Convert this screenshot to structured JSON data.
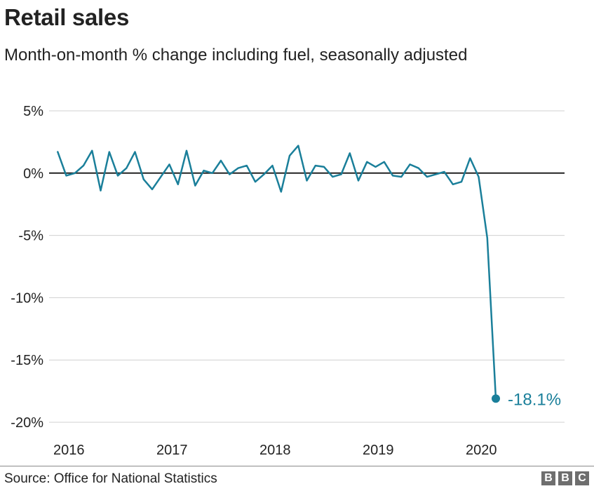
{
  "header": {
    "title": "Retail sales",
    "subtitle": "Month-on-month % change including fuel, seasonally adjusted"
  },
  "footer": {
    "source": "Source: Office for National Statistics",
    "logo_text": "BBC"
  },
  "colors": {
    "line": "#1a7f9a",
    "grid": "#d0d0d0",
    "zero_line": "#222222",
    "text": "#222222"
  },
  "chart_data": {
    "type": "line",
    "title": "Retail sales",
    "subtitle": "Month-on-month % change including fuel, seasonally adjusted",
    "ylim": [
      -20,
      5
    ],
    "yticks": [
      5,
      0,
      -5,
      -10,
      -15,
      -20
    ],
    "ytick_labels": [
      "5%",
      "0%",
      "-5%",
      "-10%",
      "-15%",
      "-20%"
    ],
    "xlim": [
      "2015-12",
      "2020-12"
    ],
    "xticks": [
      "2016-01",
      "2017-01",
      "2018-01",
      "2019-01",
      "2020-01"
    ],
    "xtick_labels": [
      "2016",
      "2017",
      "2018",
      "2019",
      "2020"
    ],
    "grid": true,
    "series": [
      {
        "x": [
          "2016-01",
          "2016-02",
          "2016-03",
          "2016-04",
          "2016-05",
          "2016-06",
          "2016-07",
          "2016-08",
          "2016-09",
          "2016-10",
          "2016-11",
          "2016-12",
          "2017-01",
          "2017-02",
          "2017-03",
          "2017-04",
          "2017-05",
          "2017-06",
          "2017-07",
          "2017-08",
          "2017-09",
          "2017-10",
          "2017-11",
          "2017-12",
          "2018-01",
          "2018-02",
          "2018-03",
          "2018-04",
          "2018-05",
          "2018-06",
          "2018-07",
          "2018-08",
          "2018-09",
          "2018-10",
          "2018-11",
          "2018-12",
          "2019-01",
          "2019-02",
          "2019-03",
          "2019-04",
          "2019-05",
          "2019-06",
          "2019-07",
          "2019-08",
          "2019-09",
          "2019-10",
          "2019-11",
          "2019-12",
          "2020-01",
          "2020-02",
          "2020-03",
          "2020-04"
        ],
        "values": [
          1.7,
          -0.2,
          0.0,
          0.6,
          1.8,
          -1.4,
          1.7,
          -0.2,
          0.4,
          1.7,
          -0.5,
          -1.3,
          -0.3,
          0.7,
          -0.9,
          1.8,
          -1.0,
          0.2,
          0.0,
          1.0,
          -0.1,
          0.4,
          0.6,
          -0.7,
          -0.1,
          0.6,
          -1.5,
          1.4,
          2.2,
          -0.6,
          0.6,
          0.5,
          -0.3,
          -0.1,
          1.6,
          -0.6,
          0.9,
          0.5,
          0.9,
          -0.2,
          -0.3,
          0.7,
          0.4,
          -0.3,
          -0.1,
          0.1,
          -0.9,
          -0.7,
          1.2,
          -0.3,
          -5.2,
          -18.1
        ]
      }
    ],
    "annotations": [
      {
        "x": "2020-04",
        "y": -18.1,
        "label": "-18.1%"
      }
    ]
  }
}
